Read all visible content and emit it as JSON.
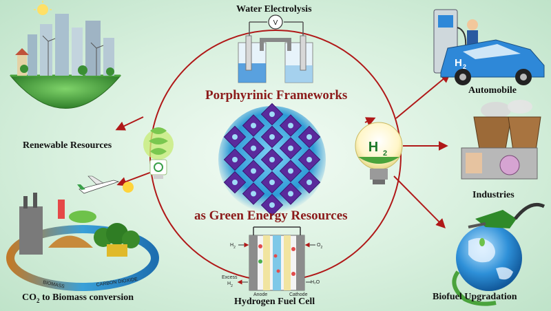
{
  "center": {
    "title_top": "Porphyrinic Frameworks",
    "title_bottom": "as Green Energy Resources"
  },
  "nodes": {
    "water_electrolysis": "Water Electrolysis",
    "renewable_resources": "Renewable Resources",
    "co2_prefix": "CO",
    "co2_sub": "2",
    "co2_suffix": " to Biomass conversion",
    "hydrogen_fuel_cell": "Hydrogen Fuel Cell",
    "automobile": "Automobile",
    "industries": "Industries",
    "biofuel_upgradation": "Biofuel Upgradation"
  },
  "fuel_cell_labels": {
    "h2": "H",
    "o2": "O",
    "excess": "Excess",
    "anode": "Anode",
    "cathode": "Cathode",
    "h2o": "H₂O"
  },
  "ring_labels": {
    "biomass": "BIOMASS",
    "carbon_dioxide": "CARBON DIOXIDE"
  },
  "car_label": "H",
  "bulb_label": "H",
  "voltmeter_label": "V",
  "colors": {
    "arrow": "#b01818",
    "title": "#8b1a1a",
    "framework": "#5a2a9c",
    "car": "#2e88d8",
    "globe": "#2e90d8"
  }
}
